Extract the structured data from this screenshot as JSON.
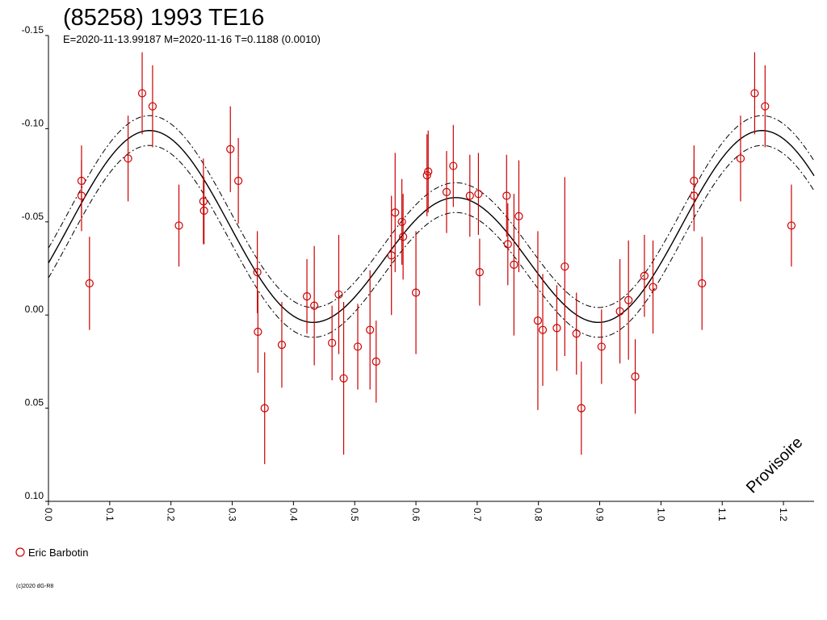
{
  "header": {
    "title": "(85258) 1993 TE16",
    "subtitle": "E=2020-11-13.99187    M=2020-11-16    T=0.1188 (0.0010)"
  },
  "watermark": "Provisoire",
  "copyright": "(c)2020 dG-R8",
  "legend": {
    "items": [
      {
        "label": "Eric Barbotin",
        "color": "#cc0000",
        "marker": "open-circle"
      }
    ]
  },
  "colors": {
    "points": "#cc0000",
    "curve": "#000000",
    "axis": "#000000"
  },
  "chart_data": {
    "type": "scatter",
    "xlim": [
      0.0,
      1.25
    ],
    "ylim": [
      -0.15,
      0.1
    ],
    "y_inverted": true,
    "x_ticks": [
      "0.0",
      "0.1",
      "0.2",
      "0.3",
      "0.4",
      "0.5",
      "0.6",
      "0.7",
      "0.8",
      "0.9",
      "1.0",
      "1.1",
      "1.2"
    ],
    "y_ticks": [
      "-0.15",
      "-0.10",
      "-0.05",
      "0.00",
      "0.05",
      "0.10"
    ],
    "fit": {
      "mean": -0.039,
      "terms": [
        {
          "harmonic": 1,
          "cos": -0.018,
          "sin": 0.0
        },
        {
          "harmonic": 2,
          "cos": -0.042,
          "sin": 0.0
        }
      ],
      "phase_offset": 0.165,
      "band": 0.008
    },
    "series": [
      {
        "name": "Eric Barbotin",
        "points": [
          {
            "x": 0.054,
            "y": -0.072,
            "err": 0.019
          },
          {
            "x": 0.054,
            "y": -0.064,
            "err": 0.019
          },
          {
            "x": 0.067,
            "y": -0.017,
            "err": 0.025
          },
          {
            "x": 0.13,
            "y": -0.084,
            "err": 0.023
          },
          {
            "x": 0.153,
            "y": -0.119,
            "err": 0.022
          },
          {
            "x": 0.17,
            "y": -0.112,
            "err": 0.022
          },
          {
            "x": 0.213,
            "y": -0.048,
            "err": 0.022
          },
          {
            "x": 0.253,
            "y": -0.061,
            "err": 0.023
          },
          {
            "x": 0.254,
            "y": -0.056,
            "err": 0.018
          },
          {
            "x": 0.297,
            "y": -0.089,
            "err": 0.023
          },
          {
            "x": 0.31,
            "y": -0.072,
            "err": 0.023
          },
          {
            "x": 0.341,
            "y": -0.023,
            "err": 0.022
          },
          {
            "x": 0.342,
            "y": 0.009,
            "err": 0.022
          },
          {
            "x": 0.353,
            "y": 0.05,
            "err": 0.03
          },
          {
            "x": 0.381,
            "y": 0.016,
            "err": 0.023
          },
          {
            "x": 0.422,
            "y": -0.01,
            "err": 0.02
          },
          {
            "x": 0.434,
            "y": -0.005,
            "err": 0.032
          },
          {
            "x": 0.463,
            "y": 0.015,
            "err": 0.02
          },
          {
            "x": 0.474,
            "y": -0.011,
            "err": 0.032
          },
          {
            "x": 0.482,
            "y": 0.034,
            "err": 0.041
          },
          {
            "x": 0.505,
            "y": 0.017,
            "err": 0.023
          },
          {
            "x": 0.525,
            "y": 0.008,
            "err": 0.032
          },
          {
            "x": 0.535,
            "y": 0.025,
            "err": 0.022
          },
          {
            "x": 0.56,
            "y": -0.032,
            "err": 0.032
          },
          {
            "x": 0.566,
            "y": -0.055,
            "err": 0.032
          },
          {
            "x": 0.577,
            "y": -0.05,
            "err": 0.023
          },
          {
            "x": 0.579,
            "y": -0.042,
            "err": 0.023
          },
          {
            "x": 0.6,
            "y": -0.012,
            "err": 0.033
          },
          {
            "x": 0.618,
            "y": -0.075,
            "err": 0.022
          },
          {
            "x": 0.62,
            "y": -0.077,
            "err": 0.022
          },
          {
            "x": 0.65,
            "y": -0.066,
            "err": 0.022
          },
          {
            "x": 0.661,
            "y": -0.08,
            "err": 0.022
          },
          {
            "x": 0.688,
            "y": -0.064,
            "err": 0.022
          },
          {
            "x": 0.702,
            "y": -0.065,
            "err": 0.022
          },
          {
            "x": 0.704,
            "y": -0.023,
            "err": 0.018
          },
          {
            "x": 0.748,
            "y": -0.064,
            "err": 0.022
          },
          {
            "x": 0.75,
            "y": -0.038,
            "err": 0.022
          },
          {
            "x": 0.76,
            "y": -0.027,
            "err": 0.038
          },
          {
            "x": 0.768,
            "y": -0.053,
            "err": 0.03
          },
          {
            "x": 0.799,
            "y": 0.003,
            "err": 0.048
          },
          {
            "x": 0.807,
            "y": 0.008,
            "err": 0.03
          },
          {
            "x": 0.83,
            "y": 0.007,
            "err": 0.023
          },
          {
            "x": 0.843,
            "y": -0.026,
            "err": 0.048
          },
          {
            "x": 0.862,
            "y": 0.01,
            "err": 0.022
          },
          {
            "x": 0.87,
            "y": 0.05,
            "err": 0.025
          },
          {
            "x": 0.903,
            "y": 0.017,
            "err": 0.02
          },
          {
            "x": 0.933,
            "y": -0.002,
            "err": 0.028
          },
          {
            "x": 0.947,
            "y": -0.008,
            "err": 0.032
          },
          {
            "x": 0.958,
            "y": 0.033,
            "err": 0.02
          },
          {
            "x": 0.973,
            "y": -0.021,
            "err": 0.022
          },
          {
            "x": 0.987,
            "y": -0.015,
            "err": 0.025
          },
          {
            "x": 1.054,
            "y": -0.072,
            "err": 0.019
          },
          {
            "x": 1.054,
            "y": -0.064,
            "err": 0.019
          },
          {
            "x": 1.067,
            "y": -0.017,
            "err": 0.025
          },
          {
            "x": 1.13,
            "y": -0.084,
            "err": 0.023
          },
          {
            "x": 1.153,
            "y": -0.119,
            "err": 0.022
          },
          {
            "x": 1.17,
            "y": -0.112,
            "err": 0.022
          },
          {
            "x": 1.213,
            "y": -0.048,
            "err": 0.022
          }
        ]
      }
    ]
  }
}
